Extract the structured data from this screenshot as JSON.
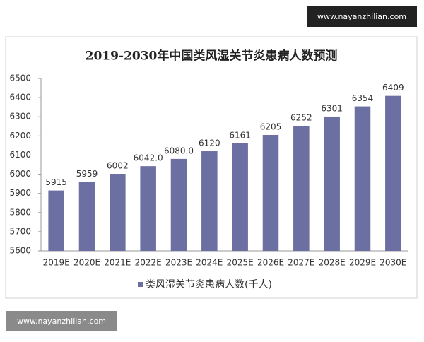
{
  "chart_data": {
    "type": "bar",
    "title": "2019-2030年中国类风湿关节炎患病人数预测",
    "categories": [
      "2019E",
      "2020E",
      "2021E",
      "2022E",
      "2023E",
      "2024E",
      "2025E",
      "2026E",
      "2027E",
      "2028E",
      "2029E",
      "2030E"
    ],
    "series": [
      {
        "name": "类风湿关节炎患病人数(千人)",
        "color": "#6c6fa2",
        "values": [
          5915,
          5959,
          6002,
          6042,
          6080,
          6120,
          6161,
          6205,
          6252,
          6301,
          6354,
          6409
        ],
        "value_labels": [
          "5915",
          "5959",
          "6002",
          "6042.0",
          "6080.0",
          "6120",
          "6161",
          "6205",
          "6252",
          "6301",
          "6354",
          "6409"
        ]
      }
    ],
    "ylim": [
      5600,
      6500
    ],
    "yticks": [
      5600,
      5700,
      5800,
      5900,
      6000,
      6100,
      6200,
      6300,
      6400,
      6500
    ],
    "grid": false,
    "legend": "bottom"
  },
  "watermarks": [
    "www.nayanzhilian.com",
    "www.nayanzhilian.com"
  ]
}
